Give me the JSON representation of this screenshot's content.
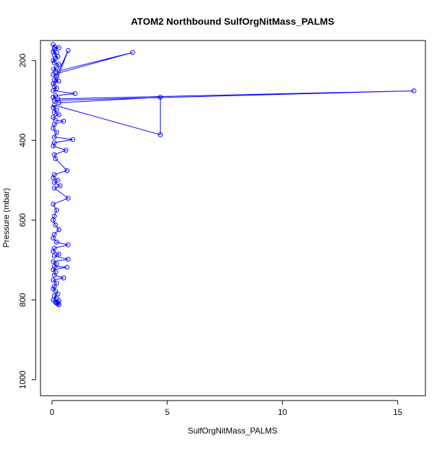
{
  "chart_data": {
    "type": "scatter",
    "title": "ATOM2 Northbound SulfOrgNitMass_PALMS",
    "xlabel": "SulfOrgNitMass_PALMS",
    "ylabel": "Pressure (mbar)",
    "xlim": [
      -0.5,
      16.2
    ],
    "ylim": [
      1040,
      150
    ],
    "y_inverted": true,
    "x_ticks": [
      0,
      5,
      10,
      15
    ],
    "x_tick_labels": [
      "0",
      "5",
      "10",
      "15"
    ],
    "y_ticks": [
      200,
      400,
      600,
      800,
      1000
    ],
    "y_tick_labels": [
      "200",
      "400",
      "600",
      "800",
      "1000"
    ],
    "grid": false,
    "legend": "none",
    "series_color": "#0000ff",
    "marker": "open-circle",
    "connected": true,
    "series": [
      {
        "x": [
          0.05,
          0.12,
          0.3,
          0.1,
          0.05,
          0.2,
          0.1,
          0.25,
          0.15,
          0.05,
          0.1,
          0.3,
          0.2,
          0.08,
          0.15,
          3.5,
          0.05,
          0.2,
          0.1,
          0.3,
          0.05,
          0.7,
          0.1,
          0.2,
          0.05,
          1.0,
          0.15,
          0.05,
          0.25,
          15.7,
          0.1,
          0.3,
          4.7,
          4.7,
          0.1,
          0.05,
          0.2,
          0.1,
          0.3,
          0.05,
          0.15,
          0.5,
          0.1,
          0.05,
          0.2,
          0.1,
          0.9,
          0.1,
          0.05,
          0.6,
          0.1,
          0.15,
          0.65,
          0.1,
          0.05,
          0.25,
          0.1,
          0.35,
          0.1,
          0.7,
          0.05,
          0.2,
          0.1,
          0.05,
          0.15,
          0.3,
          0.1,
          0.05,
          0.2,
          0.7,
          0.1,
          0.05,
          0.3,
          0.1,
          0.7,
          0.05,
          0.2,
          0.1,
          0.65,
          0.05,
          0.15,
          0.1,
          0.5,
          0.05,
          0.2,
          0.1,
          0.05,
          0.15,
          0.25,
          0.1,
          0.2,
          0.05,
          0.3,
          0.15,
          0.2,
          0.25,
          0.25,
          0.3
        ],
        "y": [
          160,
          166,
          168,
          172,
          178,
          180,
          186,
          190,
          195,
          200,
          206,
          210,
          218,
          222,
          228,
          180,
          235,
          240,
          248,
          252,
          258,
          175,
          265,
          270,
          276,
          283,
          288,
          292,
          296,
          276,
          300,
          306,
          292,
          386,
          312,
          318,
          324,
          330,
          336,
          342,
          350,
          352,
          360,
          370,
          380,
          392,
          398,
          406,
          414,
          425,
          436,
          446,
          476,
          486,
          494,
          500,
          506,
          514,
          520,
          545,
          560,
          575,
          590,
          600,
          612,
          624,
          636,
          645,
          655,
          662,
          670,
          678,
          685,
          690,
          698,
          704,
          710,
          716,
          718,
          724,
          730,
          738,
          745,
          750,
          758,
          766,
          772,
          778,
          785,
          790,
          795,
          800,
          802,
          805,
          808,
          810,
          806,
          812
        ]
      }
    ]
  }
}
